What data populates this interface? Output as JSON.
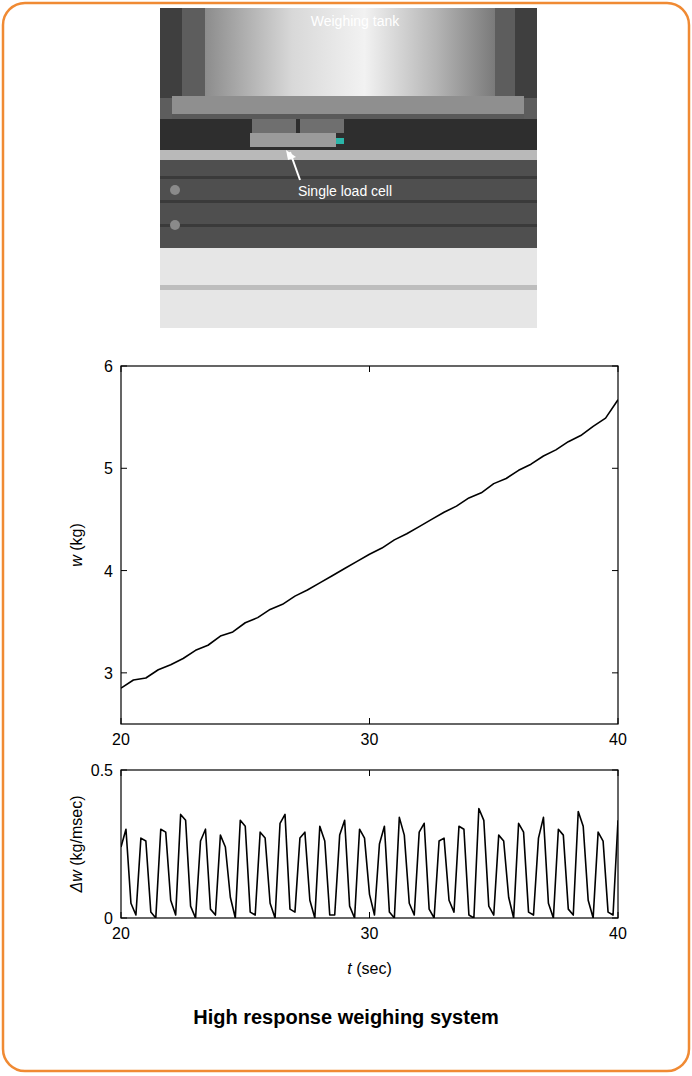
{
  "photo": {
    "labels": [
      "Weighing tank",
      "Single load cell"
    ]
  },
  "caption": "High response weighing system",
  "chart_data": [
    {
      "type": "line",
      "ylabel": "w (kg)",
      "color": "#000000",
      "xlim": [
        20,
        40
      ],
      "xticks": [
        20,
        30,
        40
      ],
      "ylim": [
        2.5,
        6
      ],
      "yticks": [
        3,
        4,
        5,
        6
      ],
      "x": [
        20,
        20.5,
        21,
        21.5,
        22,
        22.5,
        23,
        23.5,
        24,
        24.5,
        25,
        25.5,
        26,
        26.5,
        27,
        27.5,
        28,
        28.5,
        29,
        29.5,
        30,
        30.5,
        31,
        31.5,
        32,
        32.5,
        33,
        33.5,
        34,
        34.5,
        35,
        35.5,
        36,
        36.5,
        37,
        37.5,
        38,
        38.5,
        39,
        39.5,
        40
      ],
      "values": [
        2.85,
        2.93,
        2.95,
        3.03,
        3.08,
        3.14,
        3.22,
        3.27,
        3.36,
        3.4,
        3.49,
        3.54,
        3.62,
        3.67,
        3.75,
        3.81,
        3.88,
        3.95,
        4.02,
        4.09,
        4.16,
        4.22,
        4.3,
        4.36,
        4.43,
        4.5,
        4.57,
        4.63,
        4.71,
        4.76,
        4.85,
        4.9,
        4.98,
        5.04,
        5.12,
        5.18,
        5.26,
        5.32,
        5.41,
        5.49,
        5.67
      ]
    },
    {
      "type": "line",
      "ylabel": "Δw (kg/msec)",
      "xlabel": "t (sec)",
      "color": "#000000",
      "xlim": [
        20,
        40
      ],
      "xticks": [
        20,
        30,
        40
      ],
      "ylim": [
        0,
        0.5
      ],
      "yticks": [
        0,
        0.5
      ],
      "x": [
        20,
        20.2,
        20.4,
        20.6,
        20.8,
        21,
        21.2,
        21.4,
        21.6,
        21.8,
        22,
        22.2,
        22.4,
        22.6,
        22.8,
        23,
        23.2,
        23.4,
        23.6,
        23.8,
        24,
        24.2,
        24.4,
        24.6,
        24.8,
        25,
        25.2,
        25.4,
        25.6,
        25.8,
        26,
        26.2,
        26.4,
        26.6,
        26.8,
        27,
        27.2,
        27.4,
        27.6,
        27.8,
        28,
        28.2,
        28.4,
        28.6,
        28.8,
        29,
        29.2,
        29.4,
        29.6,
        29.8,
        30,
        30.2,
        30.4,
        30.6,
        30.8,
        31,
        31.2,
        31.4,
        31.6,
        31.8,
        32,
        32.2,
        32.4,
        32.6,
        32.8,
        33,
        33.2,
        33.4,
        33.6,
        33.8,
        34,
        34.2,
        34.4,
        34.6,
        34.8,
        35,
        35.2,
        35.4,
        35.6,
        35.8,
        36,
        36.2,
        36.4,
        36.6,
        36.8,
        37,
        37.2,
        37.4,
        37.6,
        37.8,
        38,
        38.2,
        38.4,
        38.6,
        38.8,
        39,
        39.2,
        39.4,
        39.6,
        39.8,
        40
      ],
      "values": [
        0.24,
        0.3,
        0.05,
        0.01,
        0.27,
        0.26,
        0.02,
        0.0,
        0.3,
        0.29,
        0.06,
        0.01,
        0.35,
        0.33,
        0.04,
        0.0,
        0.26,
        0.3,
        0.03,
        0.01,
        0.28,
        0.24,
        0.07,
        0.0,
        0.33,
        0.31,
        0.02,
        0.01,
        0.29,
        0.27,
        0.05,
        0.0,
        0.32,
        0.35,
        0.03,
        0.02,
        0.27,
        0.29,
        0.06,
        0.0,
        0.31,
        0.26,
        0.01,
        0.01,
        0.28,
        0.33,
        0.04,
        0.0,
        0.3,
        0.27,
        0.08,
        0.01,
        0.25,
        0.31,
        0.02,
        0.0,
        0.34,
        0.28,
        0.05,
        0.01,
        0.29,
        0.32,
        0.03,
        0.0,
        0.26,
        0.27,
        0.06,
        0.02,
        0.31,
        0.3,
        0.01,
        0.0,
        0.37,
        0.33,
        0.04,
        0.01,
        0.28,
        0.26,
        0.07,
        0.0,
        0.32,
        0.29,
        0.02,
        0.01,
        0.27,
        0.34,
        0.05,
        0.0,
        0.3,
        0.28,
        0.03,
        0.01,
        0.36,
        0.31,
        0.06,
        0.0,
        0.29,
        0.26,
        0.02,
        0.01,
        0.33
      ]
    }
  ]
}
